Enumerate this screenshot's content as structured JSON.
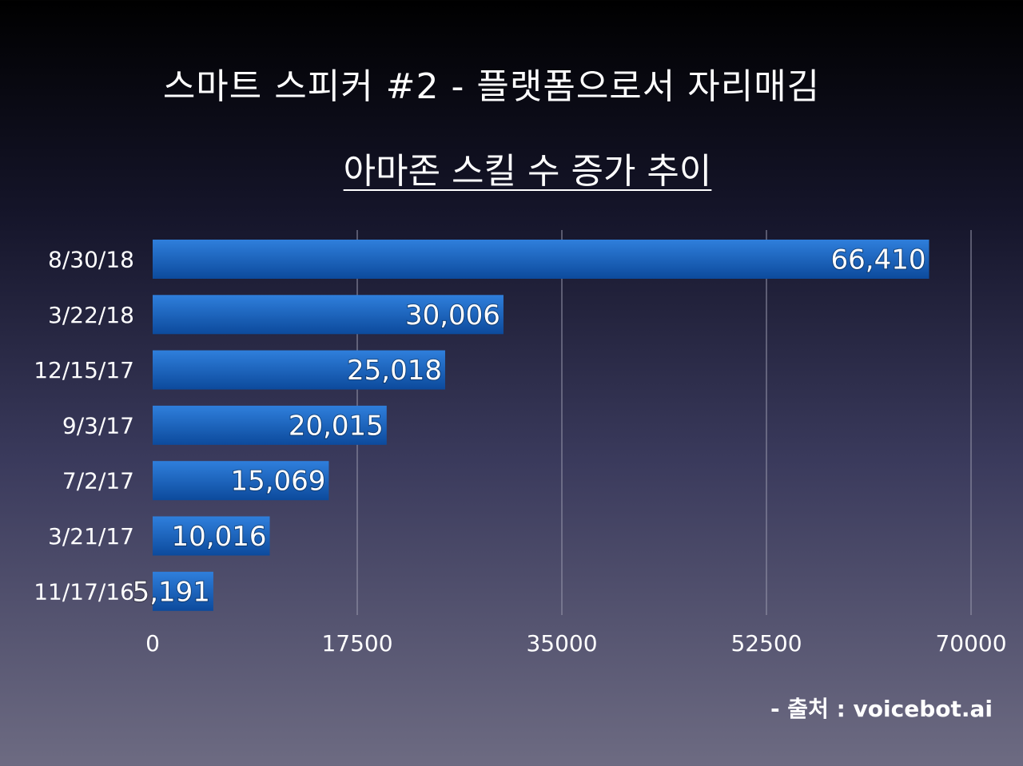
{
  "slide": {
    "title": "스마트 스피커 #2 - 플랫폼으로서 자리매김",
    "source": "- 출처 : voicebot.ai"
  },
  "colors": {
    "bar_top": "#2f7fdc",
    "bar_bottom": "#0c4a9c",
    "grid": "#9a9aae",
    "text": "#ffffff"
  },
  "chart_data": {
    "type": "bar",
    "orientation": "horizontal",
    "title": "아마존 스킬 수 증가 추이",
    "categories": [
      "8/30/18",
      "3/22/18",
      "12/15/17",
      "9/3/17",
      "7/2/17",
      "3/21/17",
      "11/17/16"
    ],
    "values": [
      66410,
      30006,
      25018,
      20015,
      15069,
      10016,
      5191
    ],
    "value_labels": [
      "66,410",
      "30,006",
      "25,018",
      "20,015",
      "15,069",
      "10,016",
      "5,191"
    ],
    "xlim": [
      0,
      70000
    ],
    "x_ticks": [
      "0",
      "17500",
      "35000",
      "52500",
      "70000"
    ],
    "grid": true,
    "legend": "none"
  }
}
